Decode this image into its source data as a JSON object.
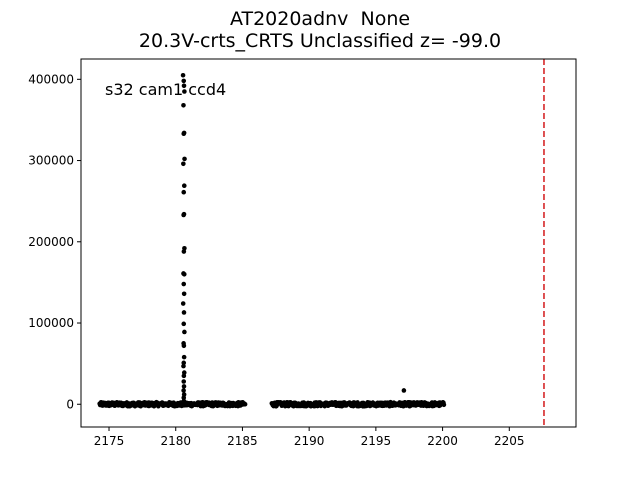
{
  "chart_data": {
    "type": "scatter",
    "title_line1": "AT2020adnv  None",
    "title_line2": "20.3V-crts_CRTS Unclassified z= -99.0",
    "annotation": "s32 cam1 ccd4",
    "xlabel": "",
    "ylabel": "",
    "xlim": [
      2172.9,
      2210.0
    ],
    "ylim": [
      -28000,
      425000
    ],
    "xticks": [
      2175,
      2180,
      2185,
      2190,
      2195,
      2200,
      2205
    ],
    "yticks": [
      0,
      100000,
      200000,
      300000,
      400000
    ],
    "grid": false,
    "marker_color": "#000000",
    "vline": {
      "x": 2207.6,
      "color": "#d62728",
      "style": "dashed"
    },
    "segments": [
      {
        "x_start": 2174.3,
        "x_end": 2185.2,
        "baseline": 0,
        "scatter": 2500
      },
      {
        "x_start": 2187.2,
        "x_end": 2200.1,
        "baseline": 0,
        "scatter": 2500
      }
    ],
    "flare_points": {
      "x": [
        2180.55,
        2180.6,
        2180.62,
        2180.65,
        2180.58,
        2180.63,
        2180.6,
        2180.66,
        2180.57,
        2180.64,
        2180.6,
        2180.62,
        2180.59,
        2180.65,
        2180.61,
        2180.58,
        2180.64,
        2180.6,
        2180.63,
        2180.56,
        2180.62,
        2180.6,
        2180.65,
        2180.59,
        2180.61,
        2180.63,
        2180.6,
        2180.58,
        2180.64,
        2180.61,
        2180.6,
        2180.62,
        2180.59,
        2180.63,
        2180.6,
        2180.61
      ],
      "y": [
        405000,
        398000,
        392000,
        385000,
        368000,
        334000,
        333000,
        302000,
        296000,
        269000,
        261000,
        234000,
        233000,
        192000,
        188000,
        161000,
        160000,
        148000,
        136000,
        124000,
        113000,
        99000,
        89000,
        75000,
        72000,
        58000,
        51000,
        47000,
        39000,
        35000,
        28000,
        22000,
        17000,
        12000,
        8000,
        4000
      ]
    },
    "outlier_points": {
      "x": [
        2197.1
      ],
      "y": [
        17000
      ]
    }
  }
}
